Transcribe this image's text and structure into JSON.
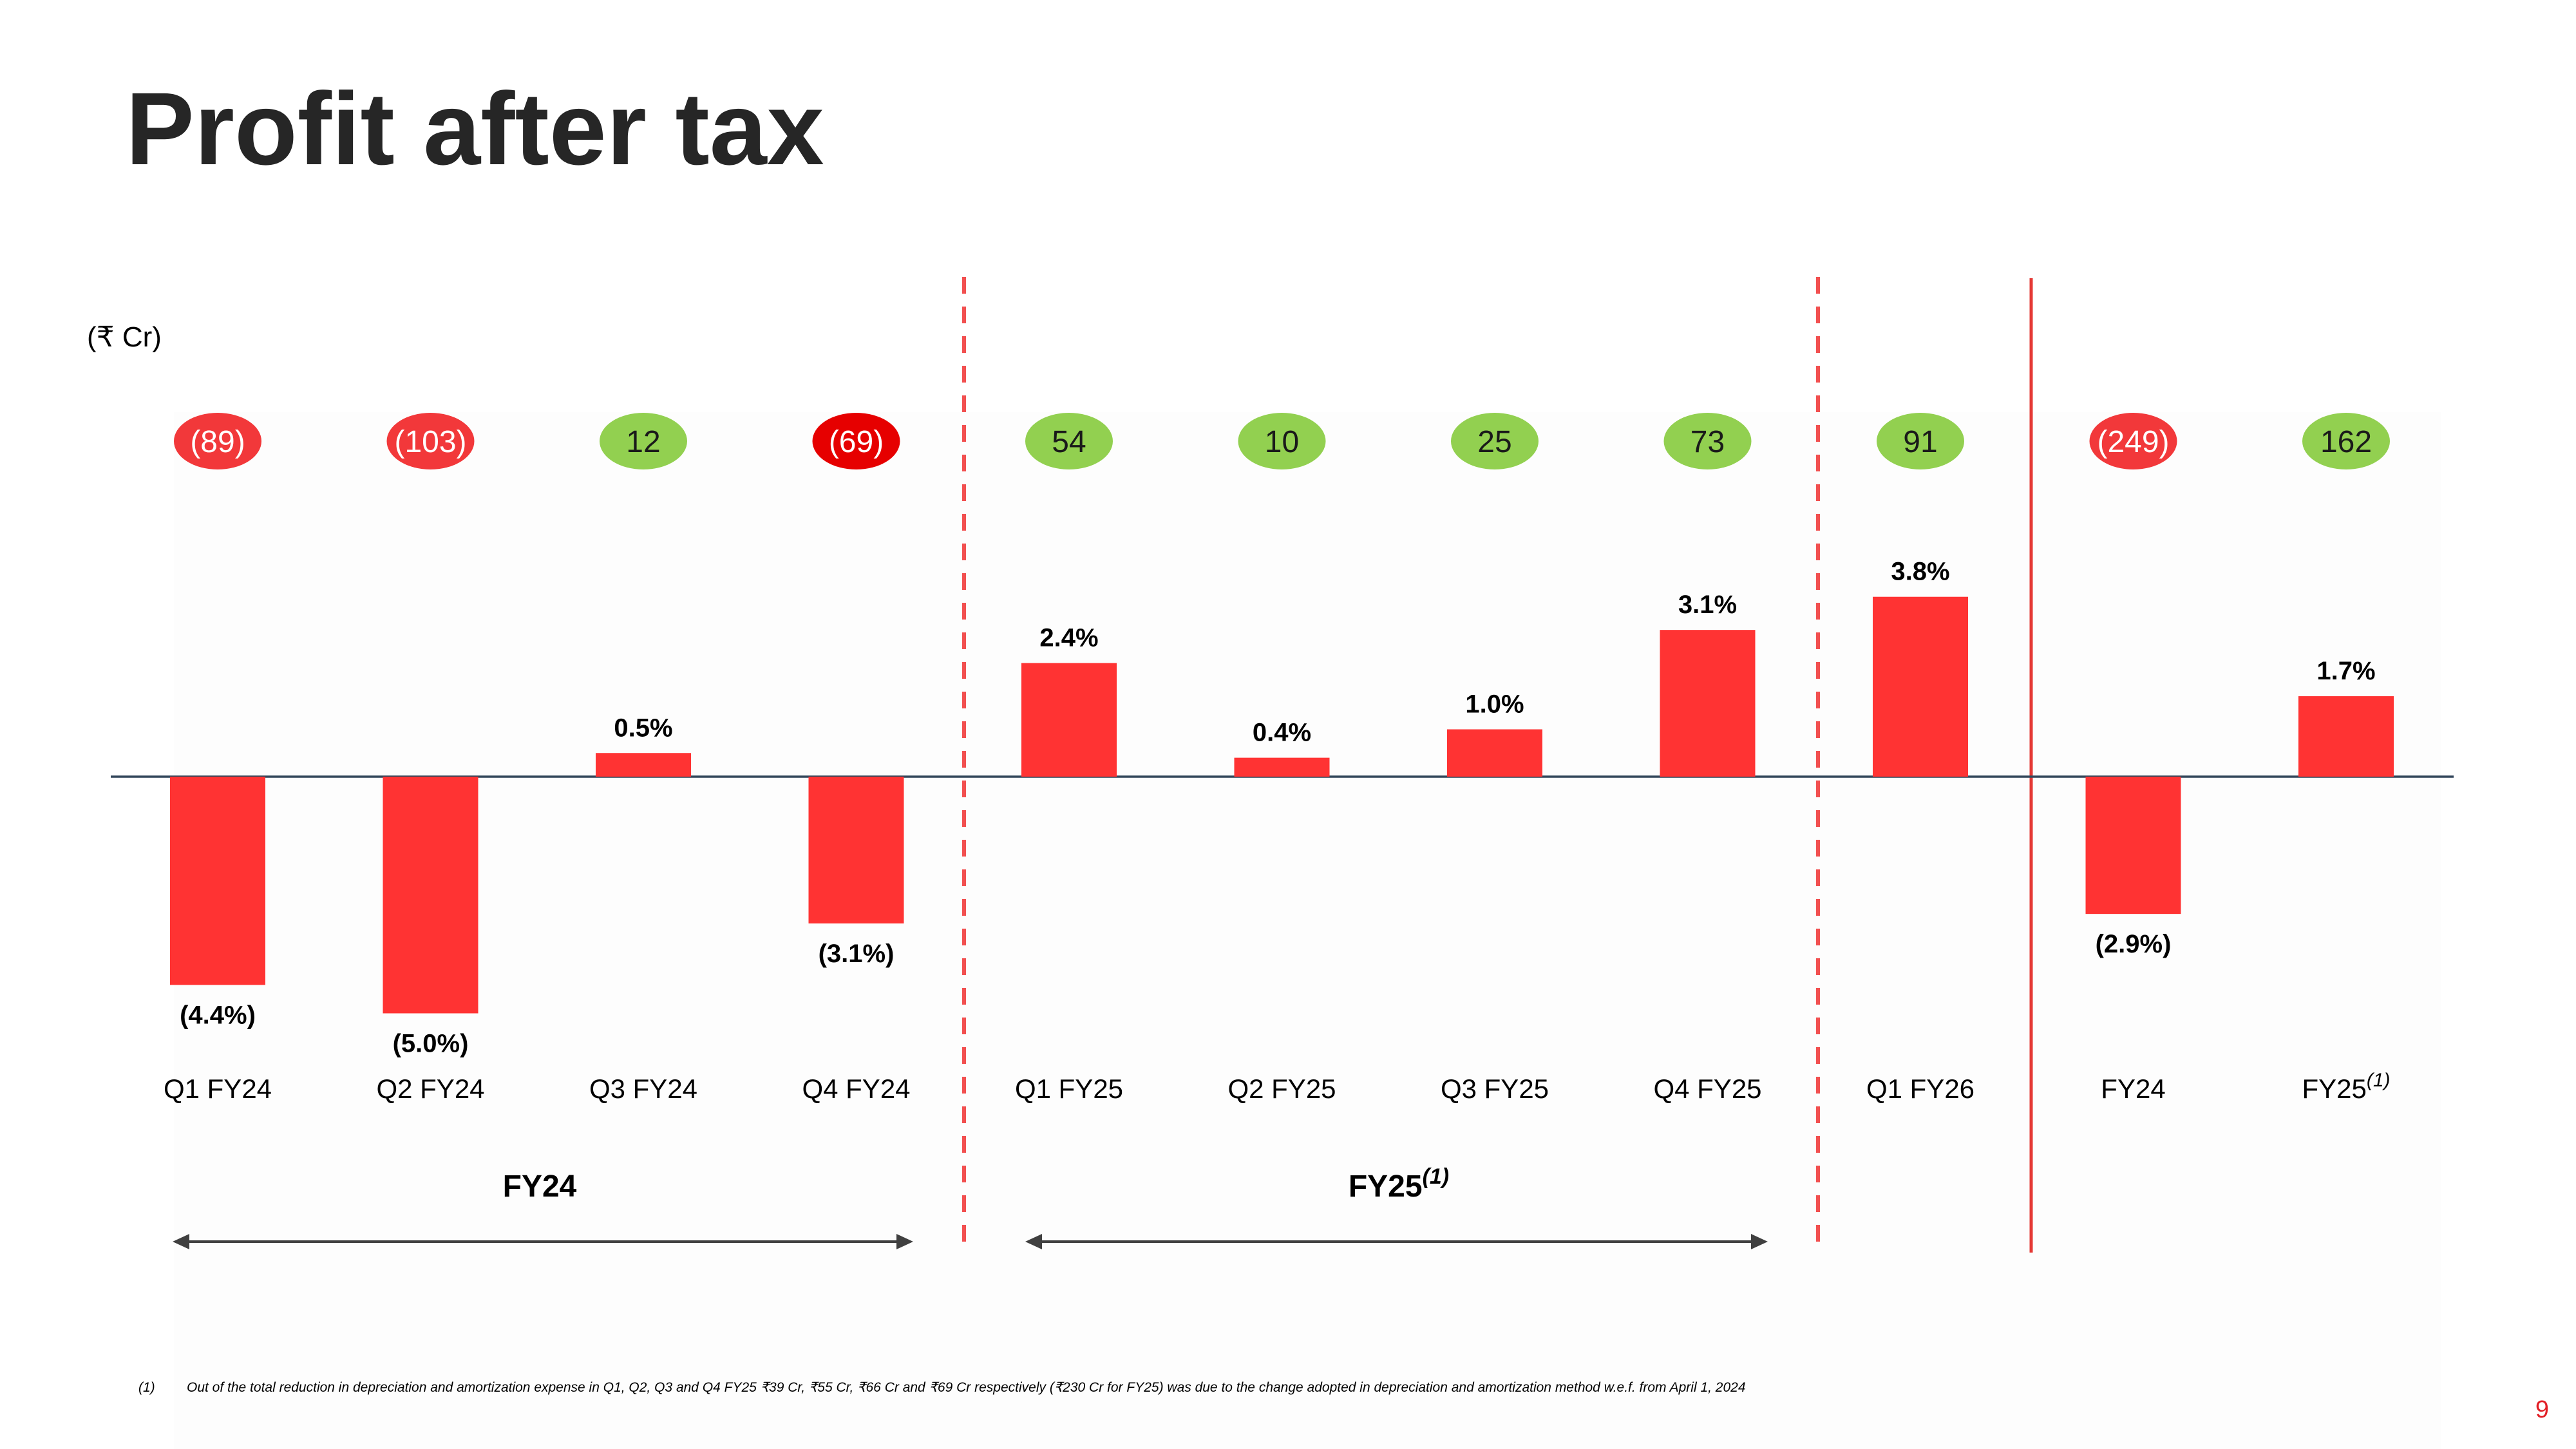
{
  "title": "Profit after tax",
  "unit": "(₹ Cr)",
  "colors": {
    "bar": "#ff3333",
    "pill_negative": "#f2383a",
    "pill_negative_strong": "#e60000",
    "pill_positive": "#92d050",
    "divider": "#f25050",
    "divider_solid": "#e53935",
    "axis": "#33475b",
    "arrow": "#404040"
  },
  "groups": [
    {
      "label": "FY24",
      "superscript": ""
    },
    {
      "label": "FY25",
      "superscript": "(1)"
    }
  ],
  "chart_data": {
    "type": "bar",
    "title": "Profit after tax",
    "ylabel": "(₹ Cr)",
    "categories": [
      "Q1 FY24",
      "Q2 FY24",
      "Q3 FY24",
      "Q4 FY24",
      "Q1 FY25",
      "Q2 FY25",
      "Q3 FY25",
      "Q4 FY25",
      "Q1 FY26",
      "FY24",
      "FY25"
    ],
    "category_superscripts": [
      "",
      "",
      "",
      "",
      "",
      "",
      "",
      "",
      "",
      "",
      "(1)"
    ],
    "series": [
      {
        "values": [
          -4.4,
          -5.0,
          0.5,
          -3.1,
          2.4,
          0.4,
          1.0,
          3.1,
          3.8,
          -2.9,
          1.7
        ],
        "labels": [
          "(4.4%)",
          "(5.0%)",
          "0.5%",
          "(3.1%)",
          "2.4%",
          "0.4%",
          "1.0%",
          "3.1%",
          "3.8%",
          "(2.9%)",
          "1.7%"
        ]
      }
    ],
    "pat_values": [
      -89,
      -103,
      12,
      -69,
      54,
      10,
      25,
      73,
      91,
      -249,
      162
    ],
    "pat_labels": [
      "(89)",
      "(103)",
      "12",
      "(69)",
      "54",
      "10",
      "25",
      "73",
      "91",
      "(249)",
      "162"
    ],
    "ylim": [
      -5.0,
      3.8
    ],
    "grid": false,
    "legend": "none"
  },
  "footnote": {
    "marker": "(1)",
    "text": "Out of the total reduction in depreciation and amortization expense in Q1, Q2, Q3 and Q4 FY25 ₹39 Cr, ₹55 Cr, ₹66 Cr and ₹69 Cr respectively (₹230 Cr for FY25) was due to the change adopted in depreciation and amortization method w.e.f. from April 1, 2024"
  },
  "page_number": "9"
}
